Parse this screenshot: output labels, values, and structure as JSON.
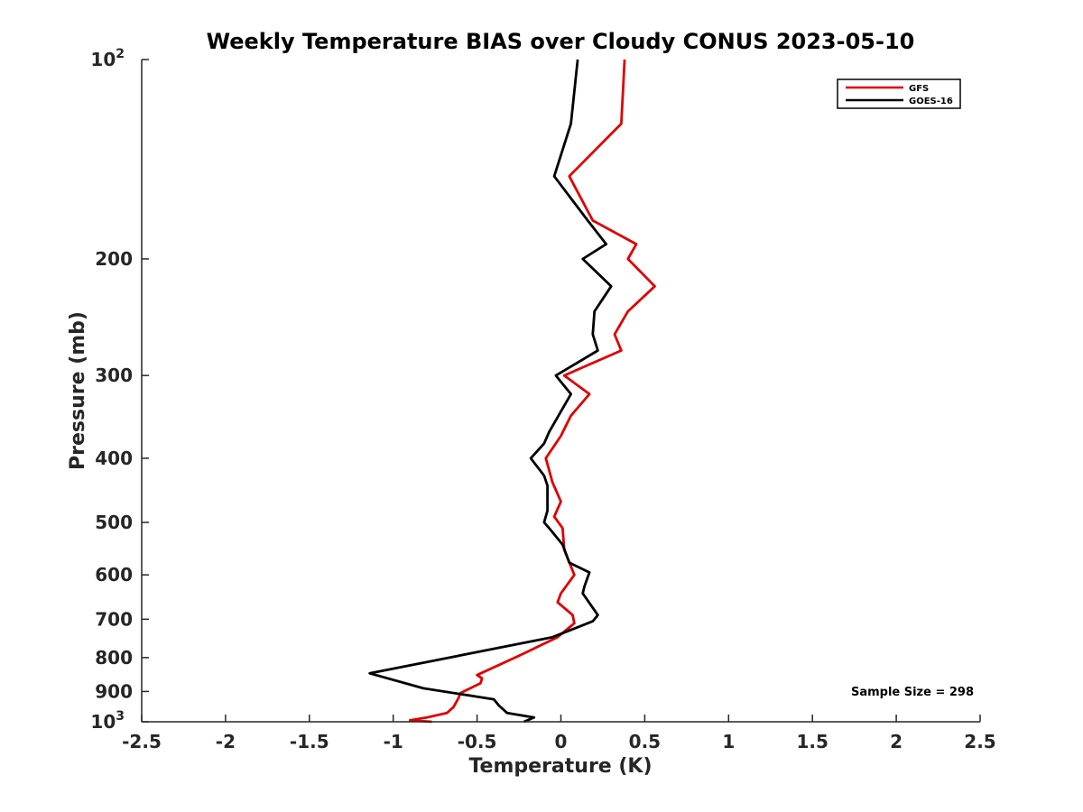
{
  "chart_data": {
    "type": "line",
    "title": "Weekly Temperature BIAS over Cloudy CONUS 2023-05-10",
    "xlabel": "Temperature (K)",
    "ylabel": "Pressure (mb)",
    "xlim": [
      -2.5,
      2.5
    ],
    "ylim": [
      1000,
      100
    ],
    "y_scale": "log",
    "y_reversed": true,
    "grid": false,
    "legend_placement": "top-right",
    "x_ticks": [
      "-2.5",
      "-2",
      "-1.5",
      "-1",
      "-0.5",
      "0",
      "0.5",
      "1",
      "1.5",
      "2",
      "2.5"
    ],
    "x_tick_values": [
      -2.5,
      -2,
      -1.5,
      -1,
      -0.5,
      0,
      0.5,
      1,
      1.5,
      2,
      2.5
    ],
    "y_ticks": [
      {
        "value": 100,
        "base": "10",
        "exp": "2"
      },
      {
        "value": 200,
        "label": "200"
      },
      {
        "value": 300,
        "label": "300"
      },
      {
        "value": 400,
        "label": "400"
      },
      {
        "value": 500,
        "label": "500"
      },
      {
        "value": 600,
        "label": "600"
      },
      {
        "value": 700,
        "label": "700"
      },
      {
        "value": 800,
        "label": "800"
      },
      {
        "value": 900,
        "label": "900"
      },
      {
        "value": 1000,
        "base": "10",
        "exp": "3"
      }
    ],
    "series": [
      {
        "name": "GFS",
        "color": "#e00000",
        "points": [
          [
            0.38,
            100
          ],
          [
            0.36,
            125
          ],
          [
            0.05,
            150
          ],
          [
            0.19,
            175
          ],
          [
            0.45,
            190
          ],
          [
            0.4,
            200
          ],
          [
            0.56,
            220
          ],
          [
            0.4,
            240
          ],
          [
            0.32,
            260
          ],
          [
            0.36,
            275
          ],
          [
            0.02,
            300
          ],
          [
            0.17,
            320
          ],
          [
            0.06,
            345
          ],
          [
            0.0,
            370
          ],
          [
            -0.09,
            400
          ],
          [
            -0.05,
            435
          ],
          [
            0.0,
            465
          ],
          [
            -0.04,
            490
          ],
          [
            0.01,
            510
          ],
          [
            0.02,
            550
          ],
          [
            0.08,
            600
          ],
          [
            0.0,
            640
          ],
          [
            -0.02,
            660
          ],
          [
            0.07,
            690
          ],
          [
            0.08,
            710
          ],
          [
            -0.02,
            745
          ],
          [
            -0.25,
            795
          ],
          [
            -0.5,
            850
          ],
          [
            -0.47,
            860
          ],
          [
            -0.48,
            875
          ],
          [
            -0.6,
            905
          ],
          [
            -0.61,
            920
          ],
          [
            -0.64,
            950
          ],
          [
            -0.68,
            970
          ],
          [
            -0.8,
            985
          ],
          [
            -0.9,
            995
          ],
          [
            -0.77,
            1000
          ]
        ]
      },
      {
        "name": "GOES-16",
        "color": "#000000",
        "points": [
          [
            0.1,
            100
          ],
          [
            0.06,
            125
          ],
          [
            -0.04,
            150
          ],
          [
            0.16,
            175
          ],
          [
            0.27,
            190
          ],
          [
            0.13,
            200
          ],
          [
            0.3,
            220
          ],
          [
            0.2,
            240
          ],
          [
            0.19,
            260
          ],
          [
            0.22,
            275
          ],
          [
            -0.03,
            300
          ],
          [
            0.06,
            320
          ],
          [
            -0.07,
            365
          ],
          [
            -0.1,
            380
          ],
          [
            -0.18,
            400
          ],
          [
            -0.1,
            425
          ],
          [
            -0.08,
            440
          ],
          [
            -0.08,
            480
          ],
          [
            -0.1,
            500
          ],
          [
            -0.07,
            510
          ],
          [
            0.01,
            540
          ],
          [
            0.05,
            575
          ],
          [
            0.17,
            595
          ],
          [
            0.14,
            625
          ],
          [
            0.13,
            640
          ],
          [
            0.22,
            690
          ],
          [
            0.19,
            705
          ],
          [
            -0.05,
            745
          ],
          [
            -1.14,
            845
          ],
          [
            -0.82,
            890
          ],
          [
            -0.4,
            925
          ],
          [
            -0.37,
            945
          ],
          [
            -0.32,
            970
          ],
          [
            -0.16,
            985
          ],
          [
            -0.22,
            1000
          ]
        ]
      }
    ],
    "annotation": "Sample Size = 298"
  }
}
